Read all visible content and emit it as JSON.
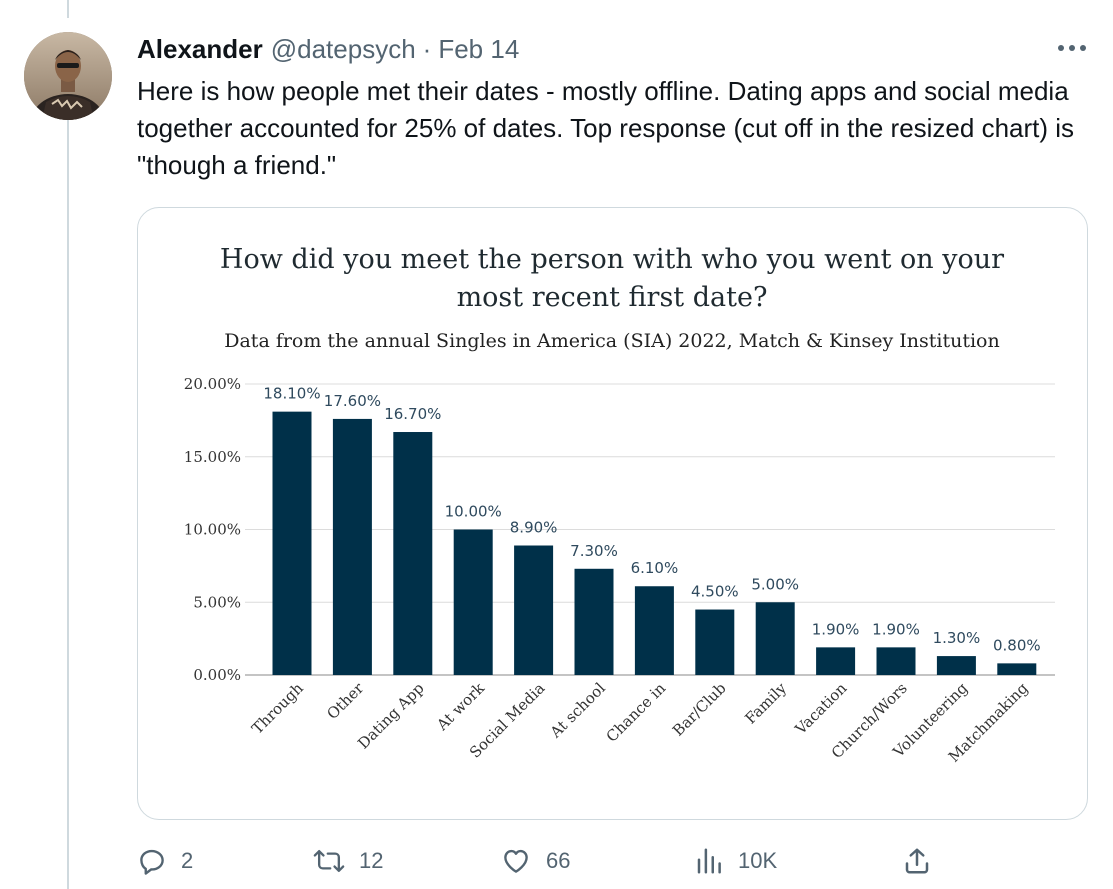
{
  "tweet": {
    "author_name": "Alexander",
    "author_handle": "@datepsych",
    "separator": "·",
    "date": "Feb 14",
    "text": "Here is how people met their dates - mostly offline. Dating apps and social media together accounted for 25% of dates. Top response (cut off in the resized chart) is \"though a friend.\""
  },
  "icons": {
    "more": "more-horizontal-icon",
    "reply": "reply-icon",
    "retweet": "retweet-icon",
    "like": "heart-icon",
    "views": "views-icon",
    "share": "share-icon"
  },
  "actions": {
    "replies": "2",
    "retweets": "12",
    "likes": "66",
    "views": "10K"
  },
  "colors": {
    "bar": "#003049",
    "muted_text": "#536471",
    "border": "#cfd9de"
  },
  "chart_data": {
    "type": "bar",
    "title_lines": [
      "How did you meet the person with who you went on your",
      "most recent first date?"
    ],
    "subtitle": "Data from the annual Singles in America (SIA) 2022, Match & Kinsey Institution",
    "categories": [
      "Through",
      "Other",
      "Dating App",
      "At work",
      "Social Media",
      "At school",
      "Chance in",
      "Bar/Club",
      "Family",
      "Vacation",
      "Church/Wors",
      "Volunteering",
      "Matchmaking"
    ],
    "values": [
      18.1,
      17.6,
      16.7,
      10.0,
      8.9,
      7.3,
      6.1,
      4.5,
      5.0,
      1.9,
      1.9,
      1.3,
      0.8
    ],
    "data_labels": [
      "18.10%",
      "17.60%",
      "16.70%",
      "10.00%",
      "8.90%",
      "7.30%",
      "6.10%",
      "4.50%",
      "5.00%",
      "1.90%",
      "1.90%",
      "1.30%",
      "0.80%"
    ],
    "y_ticks": [
      0,
      5,
      10,
      15,
      20
    ],
    "y_tick_labels": [
      "0.00%",
      "5.00%",
      "10.00%",
      "15.00%",
      "20.00%"
    ],
    "ylim": [
      0,
      20
    ],
    "grid": true,
    "legend": "none"
  }
}
